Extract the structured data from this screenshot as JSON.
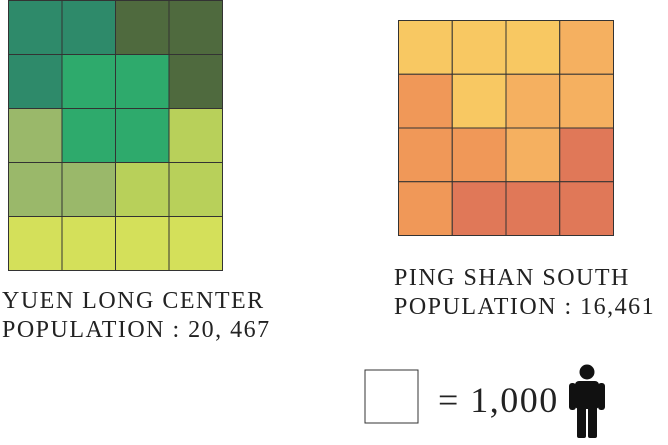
{
  "left": {
    "title": "YUEN LONG CENTER",
    "population": "POPULATION : 20, 467"
  },
  "right": {
    "title": "PING SHAN SOUTH",
    "population": "POPULATION : 16,461"
  },
  "legend": {
    "label": "= 1,000"
  }
}
